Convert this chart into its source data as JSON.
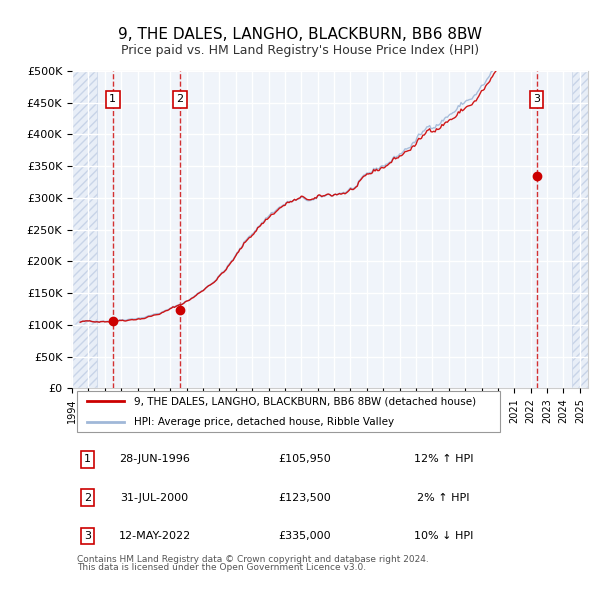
{
  "title": "9, THE DALES, LANGHO, BLACKBURN, BB6 8BW",
  "subtitle": "Price paid vs. HM Land Registry's House Price Index (HPI)",
  "legend_line1": "9, THE DALES, LANGHO, BLACKBURN, BB6 8BW (detached house)",
  "legend_line2": "HPI: Average price, detached house, Ribble Valley",
  "footer_line1": "Contains HM Land Registry data © Crown copyright and database right 2024.",
  "footer_line2": "This data is licensed under the Open Government Licence v3.0.",
  "transactions": [
    {
      "num": 1,
      "date": "28-JUN-1996",
      "price": 105950,
      "hpi_pct": "12%",
      "hpi_dir": "↑"
    },
    {
      "num": 2,
      "date": "31-JUL-2000",
      "price": 123500,
      "hpi_pct": "2%",
      "hpi_dir": "↑"
    },
    {
      "num": 3,
      "date": "12-MAY-2022",
      "price": 335000,
      "hpi_pct": "10%",
      "hpi_dir": "↓"
    }
  ],
  "transaction_dates_decimal": [
    1996.49,
    2000.58,
    2022.36
  ],
  "transaction_prices": [
    105950,
    123500,
    335000
  ],
  "vline_color": "#cc0000",
  "vline_style": "--",
  "marker_color": "#cc0000",
  "hpi_line_color": "#a0b8d8",
  "price_line_color": "#cc0000",
  "ylim": [
    0,
    500000
  ],
  "xlim_start": 1994.0,
  "xlim_end": 2025.5,
  "background_color": "#f0f4fa",
  "plot_background": "#f0f4fa",
  "grid_color": "#ffffff",
  "hatched_region_color": "#dde8f5"
}
